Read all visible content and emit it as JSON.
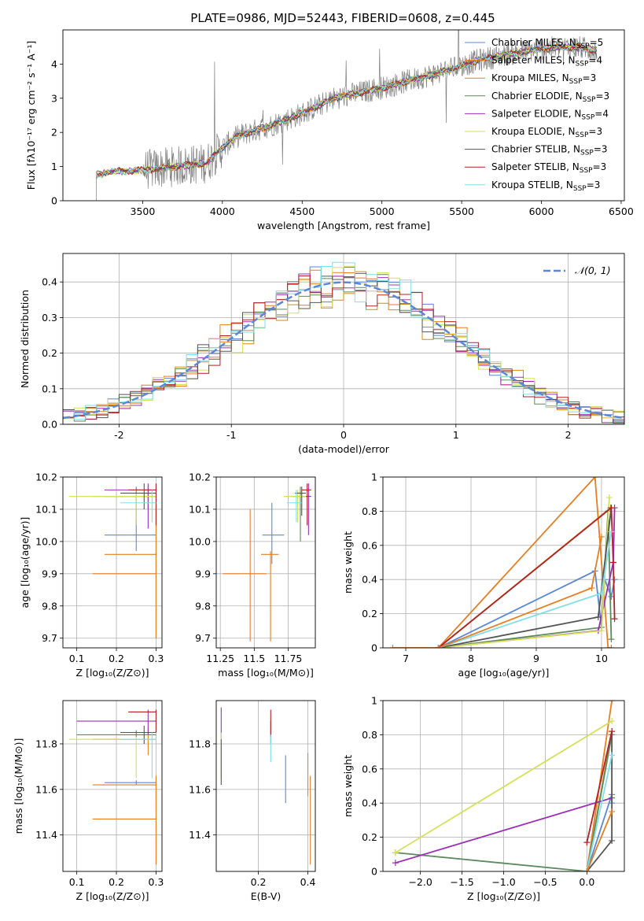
{
  "figure": {
    "title": "PLATE=0986, MJD=52443, FIBERID=0608, z=0.445"
  },
  "models": [
    {
      "label": "Chabrier MILES, N",
      "sub": "SSP",
      "suffix": "=5",
      "color": "#5b87d6"
    },
    {
      "label": "Salpeter MILES, N",
      "sub": "SSP",
      "suffix": "=4",
      "color": "#e67e22"
    },
    {
      "label": "Kroupa MILES, N",
      "sub": "SSP",
      "suffix": "=3",
      "color": "#d68910"
    },
    {
      "label": "Chabrier ELODIE, N",
      "sub": "SSP",
      "suffix": "=3",
      "color": "#5d8a5e"
    },
    {
      "label": "Salpeter ELODIE, N",
      "sub": "SSP",
      "suffix": "=4",
      "color": "#9b30b8"
    },
    {
      "label": "Kroupa ELODIE, N",
      "sub": "SSP",
      "suffix": "=3",
      "color": "#d4e157"
    },
    {
      "label": "Chabrier STELIB, N",
      "sub": "SSP",
      "suffix": "=3",
      "color": "#555555"
    },
    {
      "label": "Salpeter STELIB, N",
      "sub": "SSP",
      "suffix": "=3",
      "color": "#b22222"
    },
    {
      "label": "Kroupa STELIB, N",
      "sub": "SSP",
      "suffix": "=3",
      "color": "#80deea"
    }
  ],
  "chart_data": [
    {
      "id": "spectrum",
      "type": "line",
      "xlabel": "wavelength [Angstrom, rest frame]",
      "ylabel": "Flux [fλ10⁻¹⁷ erg cm⁻² s⁻¹ A⁻¹]",
      "xlim": [
        3000,
        6520
      ],
      "ylim": [
        0,
        5
      ],
      "xticks": [
        3500,
        4000,
        4500,
        5000,
        5500,
        6000,
        6500
      ],
      "yticks": [
        0,
        1,
        2,
        3,
        4
      ],
      "data_color": "#808080",
      "data_start": 3210,
      "data_end": 6350,
      "model_continuum": {
        "x": [
          3210,
          3300,
          3500,
          3700,
          3900,
          4000,
          4100,
          4300,
          4500,
          4700,
          5000,
          5200,
          5400,
          5600,
          5800,
          6000,
          6200,
          6350
        ],
        "y": [
          0.75,
          0.85,
          0.9,
          1.0,
          1.1,
          1.55,
          1.9,
          2.2,
          2.55,
          3.0,
          3.3,
          3.55,
          3.8,
          4.1,
          4.3,
          4.45,
          4.5,
          4.4
        ]
      },
      "legend": "upper right"
    },
    {
      "id": "residuals",
      "type": "histogram",
      "xlabel": "(data-model)/error",
      "ylabel": "Normed distribution",
      "xlim": [
        -2.5,
        2.5
      ],
      "ylim": [
        0,
        0.48
      ],
      "xticks": [
        -2,
        -1,
        0,
        1,
        2
      ],
      "yticks": [
        0.0,
        0.1,
        0.2,
        0.3,
        0.4
      ],
      "bin_width": 0.1,
      "reference": {
        "label": "𝒩(0, 1)",
        "color": "#5b87d6",
        "mean": 0,
        "sigma": 1
      },
      "legend": "upper right"
    },
    {
      "id": "age-vs-Z",
      "type": "errorbar",
      "xlabel": "Z [log₁₀(Z/Z⊙)]",
      "ylabel": "age  [log₁₀(age/yr)]",
      "xlim": [
        0.065,
        0.315
      ],
      "ylim": [
        9.67,
        10.2
      ],
      "xticks": [
        0.1,
        0.2,
        0.3
      ],
      "ytick_labels": [
        "9.7",
        "9.8",
        "9.9",
        "10.0",
        "10.1",
        "10.2"
      ],
      "points": [
        {
          "model": 0,
          "x": 0.25,
          "y": 10.02,
          "xerr": [
            0.17,
            0.3
          ],
          "yerr": [
            9.97,
            10.07
          ]
        },
        {
          "model": 1,
          "x": 0.3,
          "y": 9.9,
          "xerr": [
            0.14,
            0.3
          ],
          "yerr": [
            9.7,
            10.1
          ]
        },
        {
          "model": 2,
          "x": 0.28,
          "y": 10.14,
          "xerr": [
            0.14,
            0.3
          ],
          "yerr": [
            10.1,
            10.17
          ]
        },
        {
          "model": 3,
          "x": 0.25,
          "y": 10.14,
          "xerr": [
            0.17,
            0.3
          ],
          "yerr": [
            10.05,
            10.17
          ]
        },
        {
          "model": 4,
          "x": 0.28,
          "y": 10.16,
          "xerr": [
            0.17,
            0.3
          ],
          "yerr": [
            10.04,
            10.18
          ]
        },
        {
          "model": 5,
          "x": 0.25,
          "y": 10.14,
          "xerr": [
            0.08,
            0.3
          ],
          "yerr": [
            10.05,
            10.15
          ]
        },
        {
          "model": 6,
          "x": 0.27,
          "y": 10.15,
          "xerr": [
            0.21,
            0.3
          ],
          "yerr": [
            10.1,
            10.18
          ]
        },
        {
          "model": 7,
          "x": 0.3,
          "y": 10.16,
          "xerr": [
            0.23,
            0.3
          ],
          "yerr": [
            10.05,
            10.18
          ]
        },
        {
          "model": 8,
          "x": 0.29,
          "y": 10.12,
          "xerr": [
            0.21,
            0.3
          ],
          "yerr": [
            10.06,
            10.16
          ]
        },
        {
          "model": 1,
          "x": 0.3,
          "y": 9.96,
          "xerr": [
            0.17,
            0.3
          ],
          "yerr": [
            9.7,
            9.97
          ]
        }
      ]
    },
    {
      "id": "age-vs-mass",
      "type": "errorbar",
      "xlabel": "mass [log₁₀(M/M⊙)]",
      "xlim": [
        11.22,
        11.95
      ],
      "ylim": [
        9.67,
        10.2
      ],
      "xticks": [
        11.25,
        11.5,
        11.75
      ],
      "ytick_labels": [
        "9.7",
        "9.8",
        "9.9",
        "10.0",
        "10.1",
        "10.2"
      ],
      "points": [
        {
          "model": 0,
          "x": 11.63,
          "y": 10.02,
          "xerr": [
            11.56,
            11.72
          ],
          "yerr": [
            9.93,
            10.12
          ]
        },
        {
          "model": 1,
          "x": 11.47,
          "y": 9.9,
          "xerr": [
            11.27,
            11.59
          ],
          "yerr": [
            9.69,
            10.1
          ]
        },
        {
          "model": 2,
          "x": 11.82,
          "y": 10.14,
          "xerr": [
            11.72,
            11.9
          ],
          "yerr": [
            10.1,
            10.15
          ]
        },
        {
          "model": 3,
          "x": 11.84,
          "y": 10.14,
          "xerr": [
            11.78,
            11.87
          ],
          "yerr": [
            10.0,
            10.17
          ]
        },
        {
          "model": 4,
          "x": 11.9,
          "y": 10.14,
          "xerr": [
            11.86,
            11.92
          ],
          "yerr": [
            10.02,
            10.18
          ]
        },
        {
          "model": 5,
          "x": 11.82,
          "y": 10.14,
          "xerr": [
            11.72,
            11.88
          ],
          "yerr": [
            10.06,
            10.16
          ]
        },
        {
          "model": 6,
          "x": 11.85,
          "y": 10.15,
          "xerr": [
            11.8,
            11.88
          ],
          "yerr": [
            10.08,
            10.17
          ]
        },
        {
          "model": 7,
          "x": 11.89,
          "y": 10.16,
          "xerr": [
            11.85,
            11.92
          ],
          "yerr": [
            10.05,
            10.18
          ]
        },
        {
          "model": 8,
          "x": 11.81,
          "y": 10.12,
          "xerr": [
            11.74,
            11.85
          ],
          "yerr": [
            10.06,
            10.16
          ]
        },
        {
          "model": 1,
          "x": 11.62,
          "y": 9.96,
          "xerr": [
            11.55,
            11.68
          ],
          "yerr": [
            9.69,
            9.97
          ]
        }
      ]
    },
    {
      "id": "massweight-vs-age",
      "type": "line",
      "xlabel": "age  [log₁₀(age/yr)]",
      "ylabel": "mass weight",
      "xlim": [
        6.65,
        10.35
      ],
      "ylim": [
        0,
        1
      ],
      "xticks": [
        7,
        8,
        9,
        10
      ],
      "yticks": [
        0.0,
        0.2,
        0.4,
        0.6,
        0.8,
        1.0
      ],
      "series": [
        {
          "model": 0,
          "x": [
            7.5,
            9.9,
            10.0,
            10.05,
            10.15,
            10.2
          ],
          "y": [
            0,
            0.45,
            0.12,
            0.4,
            0.3,
            0.4
          ]
        },
        {
          "model": 1,
          "x": [
            6.8,
            7.5,
            9.9,
            10.1,
            10.15
          ],
          "y": [
            0,
            0,
            1.0,
            0.0,
            0.0
          ]
        },
        {
          "model": 2,
          "x": [
            7.5,
            10.14
          ],
          "y": [
            0,
            0.82
          ]
        },
        {
          "model": 3,
          "x": [
            7.5,
            10.0,
            10.1,
            10.15
          ],
          "y": [
            0,
            0.12,
            0.8,
            0.05
          ]
        },
        {
          "model": 4,
          "x": [
            7.5,
            9.95,
            10.18,
            10.2
          ],
          "y": [
            0,
            0.1,
            0.5,
            0.82
          ]
        },
        {
          "model": 5,
          "x": [
            7.5,
            10.0,
            10.12
          ],
          "y": [
            0,
            0.1,
            0.88
          ]
        },
        {
          "model": 6,
          "x": [
            7.5,
            9.95,
            10.15
          ],
          "y": [
            0,
            0.18,
            0.82
          ]
        },
        {
          "model": 7,
          "x": [
            7.5,
            10.15,
            10.18,
            10.2
          ],
          "y": [
            0,
            0.82,
            0.5,
            0.17
          ]
        },
        {
          "model": 8,
          "x": [
            7.5,
            10.0,
            10.15
          ],
          "y": [
            0,
            0.32,
            0.68
          ]
        },
        {
          "model": 1,
          "x": [
            7.5,
            9.85,
            10.0
          ],
          "y": [
            0,
            0.35,
            0.65
          ]
        }
      ]
    },
    {
      "id": "mass-vs-Z",
      "type": "errorbar",
      "xlabel": "Z [log₁₀(Z/Z⊙)]",
      "ylabel": "mass [log₁₀(M/M⊙)]",
      "xlim": [
        0.065,
        0.315
      ],
      "ylim": [
        11.24,
        11.99
      ],
      "xticks": [
        0.1,
        0.2,
        0.3
      ],
      "ytick_labels": [
        "11.4",
        "11.6",
        "11.8"
      ],
      "points": [
        {
          "model": 0,
          "x": 0.25,
          "y": 11.63,
          "xerr": [
            0.17,
            0.3
          ],
          "yerr": [
            11.62,
            11.64
          ]
        },
        {
          "model": 1,
          "x": 0.3,
          "y": 11.47,
          "xerr": [
            0.14,
            0.3
          ],
          "yerr": [
            11.27,
            11.66
          ]
        },
        {
          "model": 2,
          "x": 0.28,
          "y": 11.82,
          "xerr": [
            0.14,
            0.3
          ],
          "yerr": [
            11.75,
            11.87
          ]
        },
        {
          "model": 3,
          "x": 0.25,
          "y": 11.84,
          "xerr": [
            0.1,
            0.3
          ],
          "yerr": [
            11.83,
            11.86
          ]
        },
        {
          "model": 4,
          "x": 0.28,
          "y": 11.9,
          "xerr": [
            0.1,
            0.3
          ],
          "yerr": [
            11.84,
            11.95
          ]
        },
        {
          "model": 5,
          "x": 0.25,
          "y": 11.82,
          "xerr": [
            0.08,
            0.3
          ],
          "yerr": [
            11.65,
            11.83
          ]
        },
        {
          "model": 6,
          "x": 0.27,
          "y": 11.85,
          "xerr": [
            0.21,
            0.3
          ],
          "yerr": [
            11.8,
            11.88
          ]
        },
        {
          "model": 7,
          "x": 0.3,
          "y": 11.94,
          "xerr": [
            0.23,
            0.3
          ],
          "yerr": [
            11.85,
            11.95
          ]
        },
        {
          "model": 8,
          "x": 0.29,
          "y": 11.82,
          "xerr": [
            0.21,
            0.3
          ],
          "yerr": [
            11.65,
            11.85
          ]
        },
        {
          "model": 1,
          "x": 0.3,
          "y": 11.62,
          "xerr": [
            0.14,
            0.3
          ],
          "yerr": [
            11.55,
            11.64
          ]
        }
      ]
    },
    {
      "id": "mass-vs-ebv",
      "type": "errorbar",
      "xlabel": "E(B-V)",
      "xlim": [
        0.03,
        0.43
      ],
      "ylim": [
        11.24,
        11.99
      ],
      "xticks": [
        0.2,
        0.4
      ],
      "ytick_labels": [
        "11.4",
        "11.6",
        "11.8"
      ],
      "points": [
        {
          "model": 0,
          "x": 0.31,
          "y": 11.63,
          "xerr": [
            0.31,
            0.31
          ],
          "yerr": [
            11.54,
            11.75
          ]
        },
        {
          "model": 1,
          "x": 0.41,
          "y": 11.47,
          "xerr": [
            0.41,
            0.41
          ],
          "yerr": [
            11.27,
            11.66
          ]
        },
        {
          "model": 3,
          "x": 0.25,
          "y": 11.84,
          "xerr": [
            0.25,
            0.25
          ],
          "yerr": [
            11.8,
            11.9
          ]
        },
        {
          "model": 4,
          "x": 0.05,
          "y": 11.88,
          "xerr": [
            0.05,
            0.05
          ],
          "yerr": [
            11.82,
            11.96
          ]
        },
        {
          "model": 5,
          "x": 0.05,
          "y": 11.75,
          "xerr": [
            0.05,
            0.05
          ],
          "yerr": [
            11.65,
            11.85
          ]
        },
        {
          "model": 6,
          "x": 0.05,
          "y": 11.72,
          "xerr": [
            0.05,
            0.05
          ],
          "yerr": [
            11.62,
            11.82
          ]
        },
        {
          "model": 7,
          "x": 0.25,
          "y": 11.88,
          "xerr": [
            0.25,
            0.25
          ],
          "yerr": [
            11.83,
            11.95
          ]
        },
        {
          "model": 8,
          "x": 0.25,
          "y": 11.78,
          "xerr": [
            0.25,
            0.25
          ],
          "yerr": [
            11.72,
            11.84
          ]
        },
        {
          "model": 1,
          "x": 0.4,
          "y": 11.65,
          "xerr": [
            0.4,
            0.4
          ],
          "yerr": [
            11.57,
            11.76
          ]
        }
      ]
    },
    {
      "id": "massweight-vs-Z",
      "type": "line",
      "xlabel": "Z [log₁₀(Z/Z⊙)]",
      "ylabel": "mass weight",
      "xlim": [
        -2.45,
        0.45
      ],
      "ylim": [
        0,
        1
      ],
      "xticks": [
        -2.0,
        -1.5,
        -1.0,
        -0.5,
        0.0
      ],
      "xtick_labels": [
        "−2.0",
        "−1.5",
        "−1.0",
        "−0.5",
        "0.0"
      ],
      "yticks": [
        0.0,
        0.2,
        0.4,
        0.6,
        0.8,
        1.0
      ],
      "series": [
        {
          "model": 0,
          "x": [
            0.0,
            0.3,
            0.3
          ],
          "y": [
            0,
            0.45,
            0.4
          ]
        },
        {
          "model": 1,
          "x": [
            0.0,
            0.3
          ],
          "y": [
            0.0,
            1.0
          ]
        },
        {
          "model": 2,
          "x": [
            0.0,
            0.3
          ],
          "y": [
            0.0,
            0.82
          ]
        },
        {
          "model": 3,
          "x": [
            -2.3,
            0.0,
            0.3
          ],
          "y": [
            0.11,
            0.0,
            0.8
          ]
        },
        {
          "model": 4,
          "x": [
            -2.3,
            0.3
          ],
          "y": [
            0.05,
            0.43
          ]
        },
        {
          "model": 5,
          "x": [
            -2.3,
            0.3
          ],
          "y": [
            0.11,
            0.88
          ]
        },
        {
          "model": 6,
          "x": [
            0.0,
            0.3,
            0.3
          ],
          "y": [
            0.0,
            0.18,
            0.82
          ]
        },
        {
          "model": 7,
          "x": [
            0.0,
            0.3
          ],
          "y": [
            0.17,
            0.82
          ]
        },
        {
          "model": 8,
          "x": [
            0.0,
            0.3
          ],
          "y": [
            0.0,
            0.68
          ]
        },
        {
          "model": 1,
          "x": [
            0.0,
            0.3
          ],
          "y": [
            0.0,
            0.35
          ]
        }
      ]
    }
  ]
}
